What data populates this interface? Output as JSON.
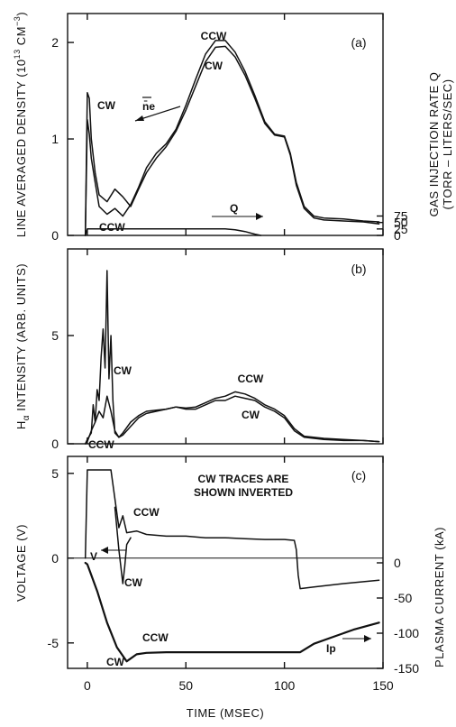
{
  "chart_data": [
    {
      "panel_label": "(a)",
      "type": "line",
      "xlabel": "",
      "xlim": [
        -10,
        150
      ],
      "ylabel": "LINE AVERAGED DENSITY (10^13 CM^-3)",
      "ylabel_parts": {
        "pre": "LINE AVERAGED DENSITY (10",
        "sup1": "13",
        "mid": " CM",
        "sup2": "−3",
        "post": ")"
      },
      "ylim": [
        0,
        2.3
      ],
      "yticks": [
        0,
        1,
        2
      ],
      "y2label_line1": "GAS INJECTION RATE Q",
      "y2label_line2": "(TORR – LITERS/SEC)",
      "y2lim": [
        0,
        300
      ],
      "y2ticks": [
        0,
        25,
        50,
        75
      ],
      "xticks": [
        0,
        50,
        100,
        150
      ],
      "series": [
        {
          "name": "CCW",
          "x": [
            -1,
            0,
            1,
            2,
            4,
            6,
            10,
            14,
            18,
            22,
            26,
            30,
            35,
            40,
            45,
            50,
            55,
            60,
            65,
            70,
            75,
            80,
            85,
            90,
            95,
            100,
            103,
            106,
            110,
            115,
            120,
            130,
            140,
            148
          ],
          "values": [
            0,
            1.2,
            1.05,
            0.8,
            0.55,
            0.3,
            0.22,
            0.28,
            0.2,
            0.32,
            0.5,
            0.7,
            0.85,
            0.95,
            1.1,
            1.35,
            1.62,
            1.88,
            2.02,
            2.02,
            1.9,
            1.7,
            1.45,
            1.18,
            1.05,
            1.03,
            0.85,
            0.55,
            0.3,
            0.2,
            0.18,
            0.17,
            0.15,
            0.14
          ]
        },
        {
          "name": "CW",
          "x": [
            -1,
            0,
            1,
            2,
            4,
            6,
            10,
            14,
            18,
            22,
            26,
            30,
            35,
            40,
            45,
            50,
            55,
            60,
            65,
            70,
            75,
            80,
            85,
            90,
            95,
            100,
            103,
            106,
            110,
            115,
            120,
            130,
            140,
            148
          ],
          "values": [
            0,
            1.48,
            1.42,
            1.0,
            0.65,
            0.42,
            0.35,
            0.48,
            0.4,
            0.3,
            0.48,
            0.65,
            0.8,
            0.92,
            1.08,
            1.3,
            1.55,
            1.8,
            1.95,
            1.96,
            1.85,
            1.66,
            1.42,
            1.16,
            1.04,
            1.02,
            0.83,
            0.52,
            0.28,
            0.18,
            0.16,
            0.15,
            0.14,
            0.12
          ]
        },
        {
          "name": "Q",
          "axis": "right",
          "x": [
            -1,
            0,
            12,
            15,
            20,
            60,
            70,
            75,
            80,
            85,
            88
          ],
          "values": [
            0,
            25,
            25,
            25,
            25,
            25,
            25,
            22,
            15,
            5,
            0
          ]
        }
      ],
      "annotations": [
        "CCW",
        "CW",
        "n̄e",
        "CW",
        "CCW",
        "Q"
      ]
    },
    {
      "panel_label": "(b)",
      "type": "line",
      "xlabel": "",
      "xlim": [
        -10,
        150
      ],
      "ylabel": "Hα INTENSITY (ARB. UNITS)",
      "ylabel_parts": {
        "pre": "H",
        "sub": "α",
        "post": " INTENSITY (ARB. UNITS)"
      },
      "ylim": [
        0,
        9
      ],
      "yticks": [
        0,
        5
      ],
      "xticks": [
        0,
        50,
        100,
        150
      ],
      "series": [
        {
          "name": "CW",
          "x": [
            -1,
            0,
            2,
            3,
            4,
            5,
            6,
            7,
            8,
            9,
            10,
            11,
            12,
            13,
            14,
            16,
            18,
            22,
            26,
            30,
            35,
            40,
            45,
            50,
            55,
            60,
            65,
            70,
            75,
            80,
            85,
            90,
            95,
            100,
            105,
            110,
            120,
            130,
            140,
            148
          ],
          "values": [
            0,
            0.2,
            0.5,
            1.8,
            1.0,
            2.5,
            2.0,
            4.0,
            5.3,
            3.5,
            8.0,
            3.0,
            5.0,
            2.0,
            0.5,
            0.3,
            0.4,
            0.8,
            1.2,
            1.4,
            1.5,
            1.6,
            1.7,
            1.6,
            1.6,
            1.8,
            2.0,
            2.0,
            2.2,
            2.1,
            2.0,
            1.7,
            1.5,
            1.2,
            0.6,
            0.3,
            0.2,
            0.15,
            0.15,
            0.1
          ]
        },
        {
          "name": "CCW",
          "x": [
            -1,
            0,
            2,
            4,
            6,
            8,
            10,
            12,
            14,
            16,
            18,
            22,
            26,
            30,
            35,
            40,
            45,
            50,
            55,
            60,
            65,
            70,
            75,
            80,
            85,
            90,
            95,
            100,
            105,
            110,
            120,
            130,
            140,
            148
          ],
          "values": [
            0,
            0.1,
            0.6,
            1.0,
            1.5,
            1.2,
            2.2,
            1.5,
            0.6,
            0.3,
            0.5,
            1.0,
            1.3,
            1.5,
            1.55,
            1.6,
            1.7,
            1.65,
            1.7,
            1.9,
            2.1,
            2.2,
            2.4,
            2.3,
            2.1,
            1.8,
            1.6,
            1.3,
            0.7,
            0.35,
            0.25,
            0.2,
            0.15,
            0.1
          ]
        }
      ],
      "annotations": [
        "CW",
        "CCW",
        "CW",
        "CCW"
      ]
    },
    {
      "panel_label": "(c)",
      "type": "line",
      "xlabel": "TIME (MSEC)",
      "xlim": [
        -10,
        150
      ],
      "ylabel": "VOLTAGE (V)",
      "ylim": [
        -6.5,
        6
      ],
      "yticks": [
        -5,
        0,
        5
      ],
      "y2label": "PLASMA CURRENT (kA)",
      "y2lim": [
        -150,
        0
      ],
      "y2ticks": [
        0,
        -50,
        -100,
        -150
      ],
      "xticks": [
        0,
        50,
        100,
        150
      ],
      "note_line1": "CW TRACES ARE",
      "note_line2": "SHOWN INVERTED",
      "series": [
        {
          "name": "V (CCW)",
          "x": [
            -1,
            0,
            12,
            14,
            16,
            18,
            20,
            25,
            30,
            40,
            50,
            60,
            70,
            80,
            90,
            100,
            105,
            106,
            107,
            108,
            115,
            130,
            148
          ],
          "values": [
            0,
            5.2,
            5.2,
            3.5,
            1.8,
            2.5,
            1.5,
            1.6,
            1.4,
            1.3,
            1.3,
            1.2,
            1.2,
            1.15,
            1.1,
            1.1,
            1.05,
            0.5,
            -1.0,
            -1.8,
            -1.7,
            -1.5,
            -1.3
          ]
        },
        {
          "name": "V (CW)",
          "x": [
            14,
            16,
            18,
            19,
            20,
            22
          ],
          "values": [
            3.0,
            0.5,
            -1.5,
            -0.5,
            0.8,
            1.2
          ]
        },
        {
          "name": "Ip",
          "axis": "right",
          "x": [
            -1,
            0,
            5,
            10,
            15,
            20,
            25,
            30,
            40,
            60,
            80,
            100,
            105,
            108,
            115,
            125,
            135,
            148
          ],
          "values": [
            0,
            -2,
            -40,
            -85,
            -120,
            -140,
            -130,
            -128,
            -127,
            -127,
            -127,
            -127,
            -127,
            -127,
            -115,
            -105,
            -95,
            -85
          ]
        }
      ],
      "annotations": [
        "CCW",
        "CW",
        "V",
        "CCW",
        "CW",
        "Ip"
      ]
    }
  ]
}
